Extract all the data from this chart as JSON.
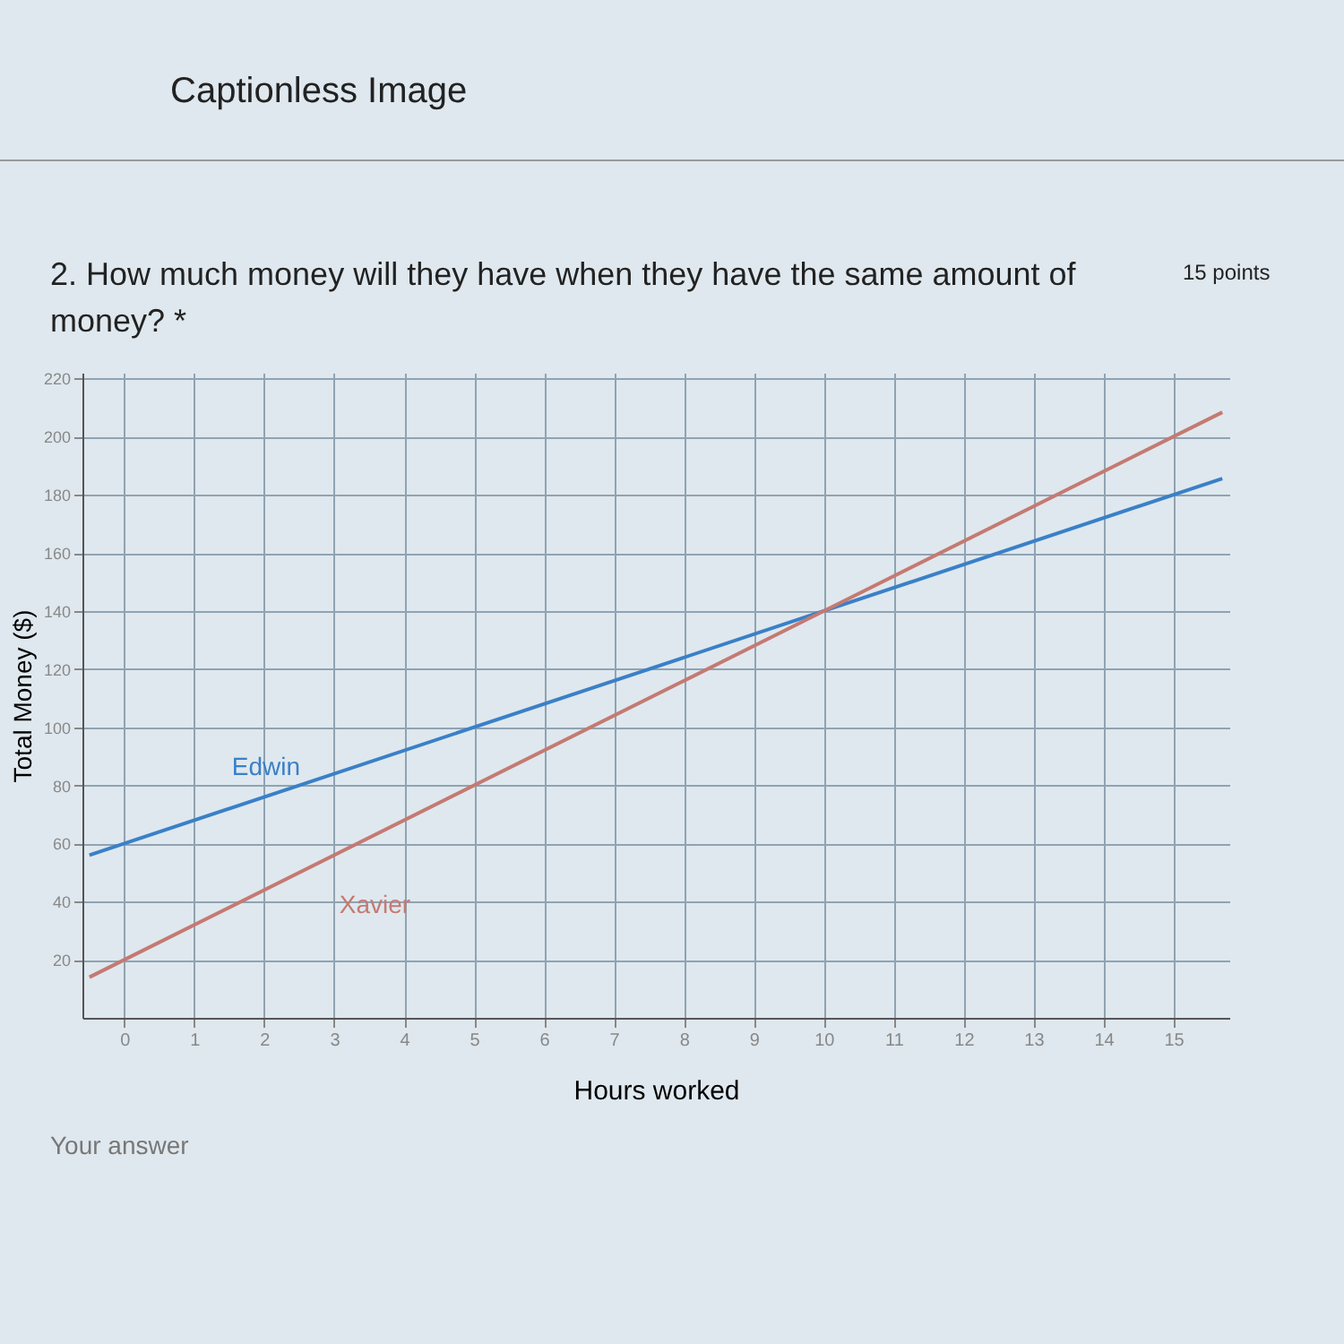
{
  "chart_data": {
    "type": "line",
    "title": "2. How much money will they have when they have the same amount of money? *",
    "xlabel": "Hours worked",
    "ylabel": "Total Money ($)",
    "annotations": [
      "Captionless Image",
      "15 points",
      "Your answer"
    ],
    "series": [
      {
        "name": "Edwin",
        "color": "#3a80c8",
        "x": [
          -0.5,
          0,
          10,
          15.7
        ],
        "values": [
          56,
          60,
          140,
          185.6
        ]
      },
      {
        "name": "Xavier",
        "color": "#c47a72",
        "x": [
          -0.5,
          0,
          10,
          15.7
        ],
        "values": [
          14,
          20,
          140,
          208.4
        ]
      }
    ],
    "xlim": [
      -0.6,
      15.8
    ],
    "xticks": [
      0,
      1,
      2,
      3,
      4,
      5,
      6,
      7,
      8,
      9,
      10,
      11,
      12,
      13,
      14,
      15
    ],
    "ylim": [
      0,
      222
    ],
    "yticks": [
      20,
      40,
      60,
      80,
      100,
      120,
      140,
      160,
      180,
      200,
      220
    ],
    "grid": true,
    "legend": false,
    "marker": "none",
    "line_style": "solid"
  }
}
